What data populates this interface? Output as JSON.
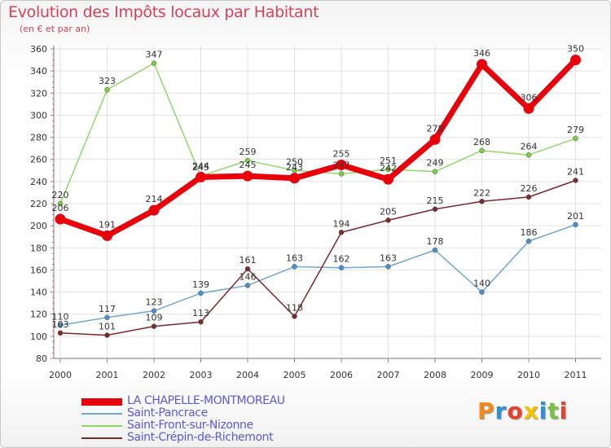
{
  "header": {
    "title": "Evolution des Impôts locaux par Habitant",
    "subtitle": "(en € et par an)"
  },
  "logo": {
    "text": "Proxiti",
    "colors": [
      "#f08a1c",
      "#2f8fd8",
      "#e8412a",
      "#f4c400",
      "#2f8fd8",
      "#7cc242",
      "#e8412a"
    ]
  },
  "chart_data": {
    "type": "line",
    "x": [
      "2000",
      "2001",
      "2002",
      "2003",
      "2004",
      "2005",
      "2006",
      "2007",
      "2008",
      "2009",
      "2010",
      "2011"
    ],
    "ylim": [
      80,
      360
    ],
    "yticks": [
      80,
      100,
      120,
      140,
      160,
      180,
      200,
      220,
      240,
      260,
      280,
      300,
      320,
      340,
      360
    ],
    "grid": true,
    "legend_position": "bottom-left",
    "series": [
      {
        "name": "LA CHAPELLE-MONTMOREAU",
        "color": "#e8000a",
        "width": 7,
        "values": [
          206,
          191,
          214,
          244,
          245,
          243,
          255,
          242,
          278,
          346,
          306,
          350
        ]
      },
      {
        "name": "Saint-Pancrace",
        "color": "#6ea7d6",
        "width": 1.5,
        "values": [
          110,
          117,
          123,
          139,
          146,
          163,
          162,
          163,
          178,
          140,
          186,
          201
        ]
      },
      {
        "name": "Saint-Front-sur-Nizonne",
        "color": "#90d868",
        "width": 1.5,
        "values": [
          220,
          323,
          347,
          245,
          259,
          250,
          247,
          251,
          249,
          268,
          264,
          279
        ]
      },
      {
        "name": "Saint-Crépin-de-Richemont",
        "color": "#7a2a2a",
        "width": 1.5,
        "values": [
          103,
          101,
          109,
          113,
          161,
          118,
          194,
          205,
          215,
          222,
          226,
          241
        ]
      }
    ]
  }
}
